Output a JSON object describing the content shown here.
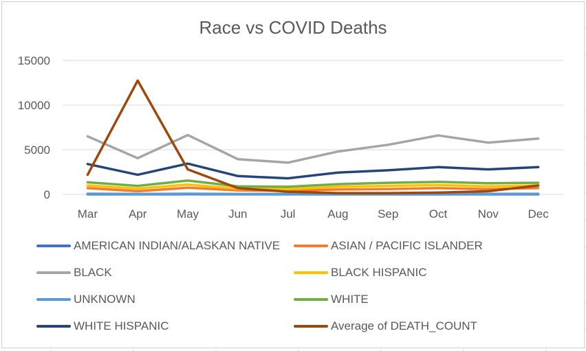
{
  "chart_data": {
    "type": "line",
    "title": "Race vs COVID Deaths",
    "xlabel": "",
    "ylabel": "",
    "categories": [
      "Mar",
      "Apr",
      "May",
      "Jun",
      "Jul",
      "Aug",
      "Sep",
      "Oct",
      "Nov",
      "Dec"
    ],
    "ylim": [
      0,
      15000
    ],
    "yticks": [
      0,
      5000,
      10000,
      15000
    ],
    "grid": true,
    "legend_position": "bottom",
    "series": [
      {
        "name": "AMERICAN INDIAN/ALASKAN NATIVE",
        "color": "#4472C4",
        "values": [
          10,
          10,
          15,
          10,
          10,
          10,
          10,
          10,
          10,
          10
        ]
      },
      {
        "name": "ASIAN / PACIFIC ISLANDER",
        "color": "#ED7D31",
        "values": [
          700,
          350,
          750,
          450,
          400,
          550,
          600,
          700,
          600,
          700
        ]
      },
      {
        "name": "BLACK",
        "color": "#A5A5A5",
        "values": [
          6500,
          4050,
          6650,
          3950,
          3550,
          4800,
          5550,
          6600,
          5800,
          6250
        ]
      },
      {
        "name": "BLACK HISPANIC",
        "color": "#FFC000",
        "values": [
          1000,
          650,
          1100,
          650,
          600,
          850,
          950,
          1050,
          900,
          1000
        ]
      },
      {
        "name": "UNKNOWN",
        "color": "#5B9BD5",
        "values": [
          80,
          50,
          80,
          50,
          50,
          60,
          60,
          70,
          60,
          70
        ]
      },
      {
        "name": "WHITE",
        "color": "#70AD47",
        "values": [
          1350,
          950,
          1550,
          900,
          850,
          1150,
          1300,
          1400,
          1250,
          1300
        ]
      },
      {
        "name": "WHITE HISPANIC",
        "color": "#264478",
        "values": [
          3400,
          2200,
          3450,
          2050,
          1800,
          2450,
          2700,
          3050,
          2800,
          3050
        ]
      },
      {
        "name": "Average of DEATH_COUNT",
        "color": "#9E480E",
        "values": [
          2200,
          12750,
          2800,
          700,
          300,
          150,
          150,
          200,
          350,
          1000
        ]
      }
    ]
  }
}
